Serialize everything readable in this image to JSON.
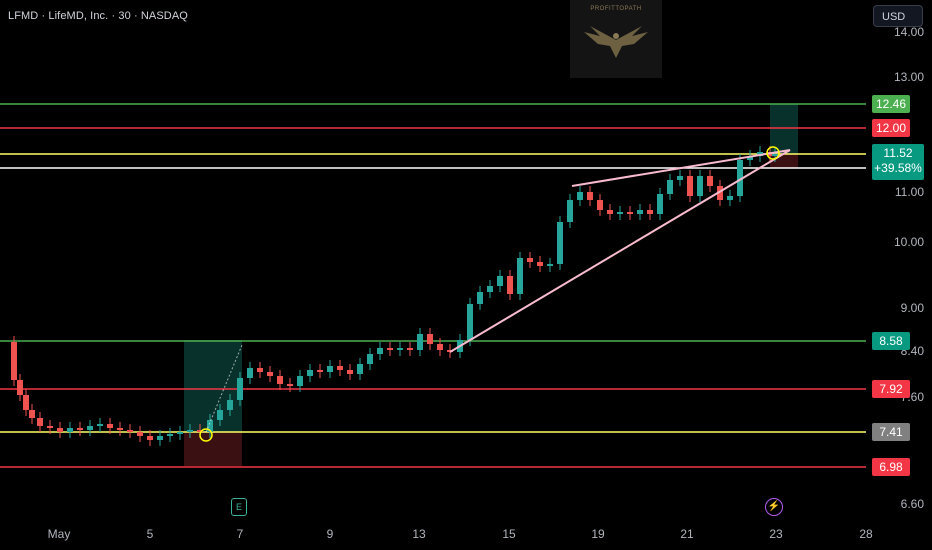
{
  "header": {
    "symbol_line": "LFMD · LifeMD, Inc. · 30 · NASDAQ",
    "currency_button": "USD"
  },
  "watermark": {
    "text": "PROFITTOPATH",
    "icon": "eagle-icon"
  },
  "y_axis": {
    "ticks": [
      "14.00",
      "13.00",
      "11.00",
      "10.00",
      "9.00",
      "8.40",
      "7.60",
      "6.60"
    ]
  },
  "x_axis": {
    "ticks": [
      "May",
      "5",
      "7",
      "9",
      "13",
      "15",
      "19",
      "21",
      "23",
      "28"
    ]
  },
  "price_lines": [
    {
      "label": "12.46",
      "color": "#4caf50",
      "level": 12.46
    },
    {
      "label": "12.00",
      "color": "#f23645",
      "level": 12.0
    },
    {
      "label": "8.58",
      "color": "#089981",
      "level": 8.58
    },
    {
      "label": "7.92",
      "color": "#f23645",
      "level": 7.92
    },
    {
      "label": "7.41",
      "color": "#808080",
      "level": 7.41
    },
    {
      "label": "6.98",
      "color": "#f23645",
      "level": 6.98
    }
  ],
  "current_price": {
    "price": "11.52",
    "change": "+39.58%",
    "color": "#089981"
  },
  "events": {
    "earnings_label": "E",
    "flash_icon": "lightning-icon"
  },
  "colors": {
    "up": "#26a69a",
    "down": "#ef5350",
    "background": "#000000"
  }
}
